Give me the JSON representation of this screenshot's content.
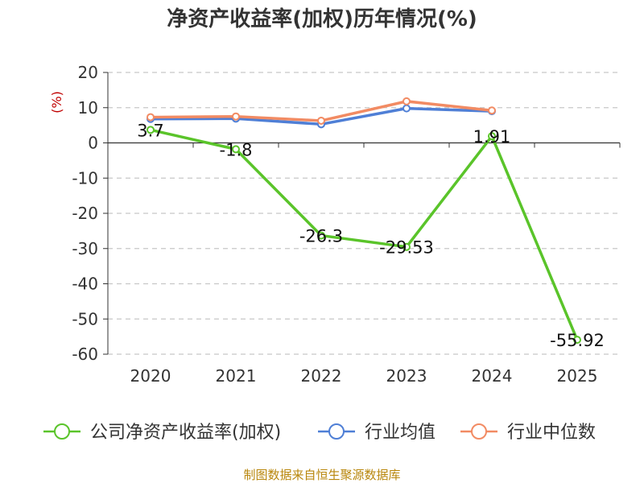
{
  "chart_data": {
    "type": "line",
    "title": "净资产收益率(加权)历年情况(%)",
    "ylabel": "(%)",
    "xlabel": "",
    "categories": [
      "2020",
      "2021",
      "2022",
      "2023",
      "2024",
      "2025"
    ],
    "ylim": [
      -60,
      20
    ],
    "yticks": [
      20,
      10,
      0,
      -10,
      -20,
      -30,
      -40,
      -50,
      -60
    ],
    "grid": true,
    "legend_position": "bottom",
    "series": [
      {
        "name": "公司净资产收益率(加权)",
        "color": "#5ac42a",
        "values": [
          3.7,
          -1.8,
          -26.3,
          -29.53,
          1.91,
          -55.92
        ],
        "labels": [
          "3.7",
          "-1.8",
          "-26.3",
          "-29.53",
          "1.91",
          "-55.92"
        ]
      },
      {
        "name": "行业均值",
        "color": "#4f7fd6",
        "values": [
          6.8,
          6.9,
          5.3,
          9.8,
          9.0,
          null
        ]
      },
      {
        "name": "行业中位数",
        "color": "#f28b63",
        "values": [
          7.3,
          7.5,
          6.3,
          11.8,
          9.2,
          null
        ]
      }
    ]
  },
  "footer": {
    "source": "制图数据来自恒生聚源数据库"
  }
}
